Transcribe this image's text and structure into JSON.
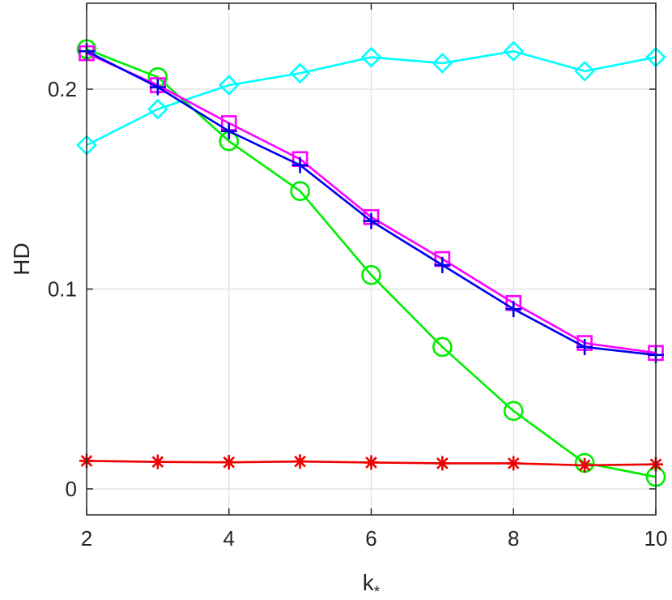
{
  "chart_data": {
    "type": "line",
    "title": "",
    "xlabel": "k",
    "xlabel_sub": "*",
    "ylabel": "HD",
    "xlim": [
      2,
      10
    ],
    "ylim": [
      -0.013,
      0.243
    ],
    "grid": true,
    "legend": "none",
    "x": [
      2,
      3,
      4,
      5,
      6,
      7,
      8,
      9,
      10
    ],
    "xticks": [
      2,
      4,
      6,
      8,
      10
    ],
    "yticks": [
      0,
      0.1,
      0.2
    ],
    "ytick_labels": [
      "0",
      "0.1",
      "0.2"
    ],
    "series": [
      {
        "color": "#00ffff",
        "marker": "diamond",
        "values": [
          0.172,
          0.19,
          0.202,
          0.208,
          0.216,
          0.213,
          0.219,
          0.209,
          0.216
        ]
      },
      {
        "color": "#00ee00",
        "marker": "circle",
        "values": [
          0.22,
          0.206,
          0.174,
          0.149,
          0.107,
          0.071,
          0.039,
          0.013,
          0.006
        ]
      },
      {
        "color": "#ff00ff",
        "marker": "square",
        "values": [
          0.218,
          0.202,
          0.183,
          0.165,
          0.136,
          0.115,
          0.093,
          0.073,
          0.068
        ]
      },
      {
        "color": "#0000ee",
        "marker": "plus",
        "values": [
          0.219,
          0.201,
          0.179,
          0.162,
          0.134,
          0.112,
          0.09,
          0.071,
          0.067
        ]
      },
      {
        "color": "#ee0000",
        "marker": "asterisk",
        "values": [
          0.014,
          0.0135,
          0.0133,
          0.0137,
          0.0132,
          0.0128,
          0.0128,
          0.0118,
          0.0123
        ]
      }
    ]
  }
}
